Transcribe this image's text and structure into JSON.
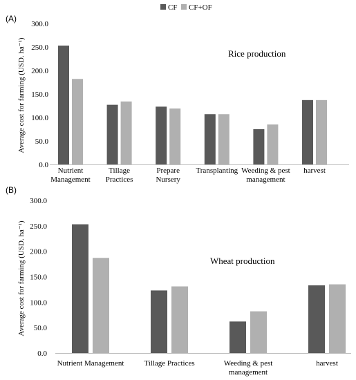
{
  "legend": {
    "items": [
      {
        "label": "CF",
        "color": "#595959"
      },
      {
        "label": "CF+OF",
        "color": "#b0b0b0"
      }
    ]
  },
  "colors": {
    "cf": "#595959",
    "cfof": "#b0b0b0",
    "axis": "#bfbfbf",
    "text": "#000000"
  },
  "chart_data": [
    {
      "type": "bar",
      "panel_label": "(A)",
      "annotation": "Rice production",
      "ylabel": "Average cost for farming (USD. ha⁻¹)",
      "ylim": [
        0,
        300
      ],
      "yticks": [
        "0.0",
        "50.0",
        "100.0",
        "150.0",
        "200.0",
        "250.0",
        "300.0"
      ],
      "grid": false,
      "legend_position": "top",
      "categories": [
        [
          "Nutrient",
          "Management"
        ],
        [
          "Tillage",
          "Practices"
        ],
        [
          "Prepare",
          "Nursery"
        ],
        [
          "Transplanting"
        ],
        [
          "Weeding & pest",
          "management"
        ],
        [
          "harvest"
        ]
      ],
      "series": [
        {
          "name": "CF",
          "values": [
            253,
            127,
            123,
            107,
            75,
            137
          ]
        },
        {
          "name": "CF+OF",
          "values": [
            182,
            134,
            119,
            107,
            85,
            137
          ]
        }
      ]
    },
    {
      "type": "bar",
      "panel_label": "(B)",
      "annotation": "Wheat production",
      "ylabel": "Average cost for farming (USD. ha⁻¹)",
      "ylim": [
        0,
        300
      ],
      "yticks": [
        "0.0",
        "50.0",
        "100.0",
        "150.0",
        "200.0",
        "250.0",
        "300.0"
      ],
      "grid": false,
      "categories": [
        [
          "Nutrient  Management"
        ],
        [
          "Tillage Practices"
        ],
        [
          "Weeding & pest",
          "management"
        ],
        [
          "harvest"
        ]
      ],
      "series": [
        {
          "name": "CF",
          "values": [
            253,
            123,
            62,
            133
          ]
        },
        {
          "name": "CF+OF",
          "values": [
            187,
            131,
            82,
            135
          ]
        }
      ]
    }
  ]
}
